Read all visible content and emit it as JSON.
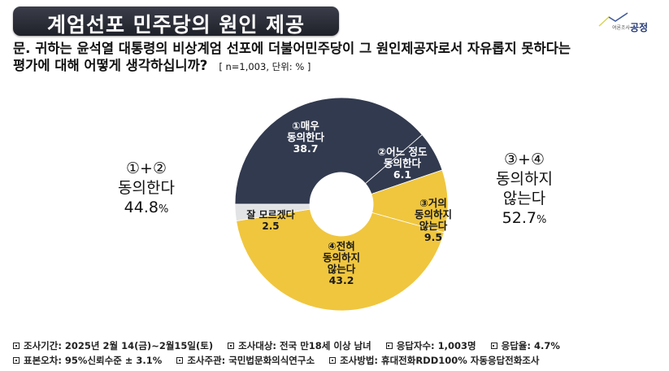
{
  "header": {
    "title": "계엄선포 민주당의 원인 제공",
    "logo": {
      "small_text": "여론조사",
      "name": "공정"
    }
  },
  "question": {
    "text_line1": "문. 귀하는 윤석열 대통령의 비상계엄 선포에 더불어민주당이 그 원인제공자로서 자유롭지 못하다는",
    "text_line2": "평가에 대해 어떻게 생각하십니까?",
    "meta": "[ n=1,003, 단위: % ]"
  },
  "colors": {
    "agree": "#323a4f",
    "disagree": "#f0c63e",
    "dont_know": "#e2e3e5",
    "title_bg": "#2a2c35"
  },
  "chart_data": {
    "type": "pie",
    "subtype": "donut",
    "title": "계엄선포 민주당의 원인 제공",
    "unit": "%",
    "n": 1003,
    "categories": [
      "①매우 동의한다",
      "②어느 정도 동의한다",
      "③거의 동의하지 않는다",
      "④전혀 동의하지 않는다",
      "잘 모르겠다"
    ],
    "values": [
      38.7,
      6.1,
      9.5,
      43.2,
      2.5
    ],
    "colors": [
      "#323a4f",
      "#323a4f",
      "#f0c63e",
      "#f0c63e",
      "#e2e3e5"
    ],
    "groups": [
      {
        "label": "①+② 동의한다",
        "value": 44.8
      },
      {
        "label": "③+④ 동의하지 않는다",
        "value": 52.7
      }
    ]
  },
  "slice_labels": {
    "s1": {
      "l1": "①매우",
      "l2": "동의한다",
      "v": "38.7"
    },
    "s2": {
      "l1": "②어느 정도",
      "l2": "동의한다",
      "v": "6.1"
    },
    "s3": {
      "l1": "③거의",
      "l2": "동의하지",
      "l3": "않는다",
      "v": "9.5"
    },
    "s4": {
      "l1": "④전혀",
      "l2": "동의하지",
      "l3": "않는다",
      "v": "43.2"
    },
    "s5": {
      "l1": "잘 모르겠다",
      "v": "2.5"
    }
  },
  "side_left": {
    "combo": "①+②",
    "label": "동의한다",
    "value": "44.8",
    "unit": "%"
  },
  "side_right": {
    "combo": "③+④",
    "label1": "동의하지",
    "label2": "않는다",
    "value": "52.7",
    "unit": "%"
  },
  "footer": {
    "row1": [
      "조사기간: 2025년 2월 14(금)~2월15일(토)",
      "조사대상: 전국 만18세 이상 남녀",
      "응답자수: 1,003명",
      "응답율: 4.7%"
    ],
    "row2": [
      "표본오차: 95%신뢰수준 ± 3.1%",
      "조사주관: 국민법문화의식연구소",
      "조사방법: 휴대전화RDD100% 자동응답전화조사"
    ]
  }
}
